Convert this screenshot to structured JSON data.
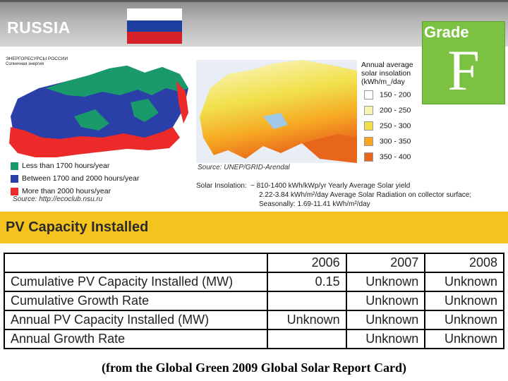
{
  "header": {
    "country": "RUSSIA",
    "grade_label": "Grade",
    "grade": "F"
  },
  "left_map": {
    "title": "ЭНЕРГОРЕСУРСЫ РОССИИ",
    "subtitle": "Солнечная энергия",
    "legend": [
      {
        "label": "Less than 1700 hours/year",
        "color": "#1a9a6a"
      },
      {
        "label": "Between 1700 and 2000 hours/year",
        "color": "#2b3fa8"
      },
      {
        "label": "More than 2000 hours/year",
        "color": "#ec2a2a"
      }
    ],
    "source": "Source: http://ecoclub.nsu.ru"
  },
  "right_map": {
    "legend_title": [
      "Annual average",
      "solar insolation",
      "(kWh/m_/day"
    ],
    "legend": [
      {
        "label": "150 - 200",
        "color": "#ffffff"
      },
      {
        "label": "200 - 250",
        "color": "#f8f4b4"
      },
      {
        "label": "250 - 300",
        "color": "#f1e04a"
      },
      {
        "label": "300 - 350",
        "color": "#f6a623"
      },
      {
        "label": "350 - 400",
        "color": "#e8661c"
      }
    ],
    "source": "Source: UNEP/GRID-Arendal"
  },
  "insolation": {
    "label": "Solar Insolation:",
    "lines": [
      "~ 810-1400 kWh/kWp/yr Yearly Average Solar yield",
      "2.22-3.84 kWh/m²/day Average Solar Radiation on collector surface;",
      "Seasonally: 1.69-11.41 kWh/m²/day"
    ]
  },
  "section_title": "PV Capacity Installed",
  "table": {
    "columns": [
      "2006",
      "2007",
      "2008"
    ],
    "rows": [
      {
        "label": "Cumulative PV Capacity Installed (MW)",
        "cells": [
          0.15,
          "Unknown",
          "Unknown"
        ]
      },
      {
        "label": "Cumulative Growth Rate",
        "cells": [
          null,
          "Unknown",
          "Unknown"
        ]
      },
      {
        "label": "Annual PV Capacity Installed (MW)",
        "cells": [
          "Unknown",
          "Unknown",
          "Unknown"
        ]
      },
      {
        "label": "Annual Growth Rate",
        "cells": [
          null,
          "Unknown",
          "Unknown"
        ]
      }
    ]
  },
  "caption": "(from the Global Green 2009 Global Solar Report Card)"
}
